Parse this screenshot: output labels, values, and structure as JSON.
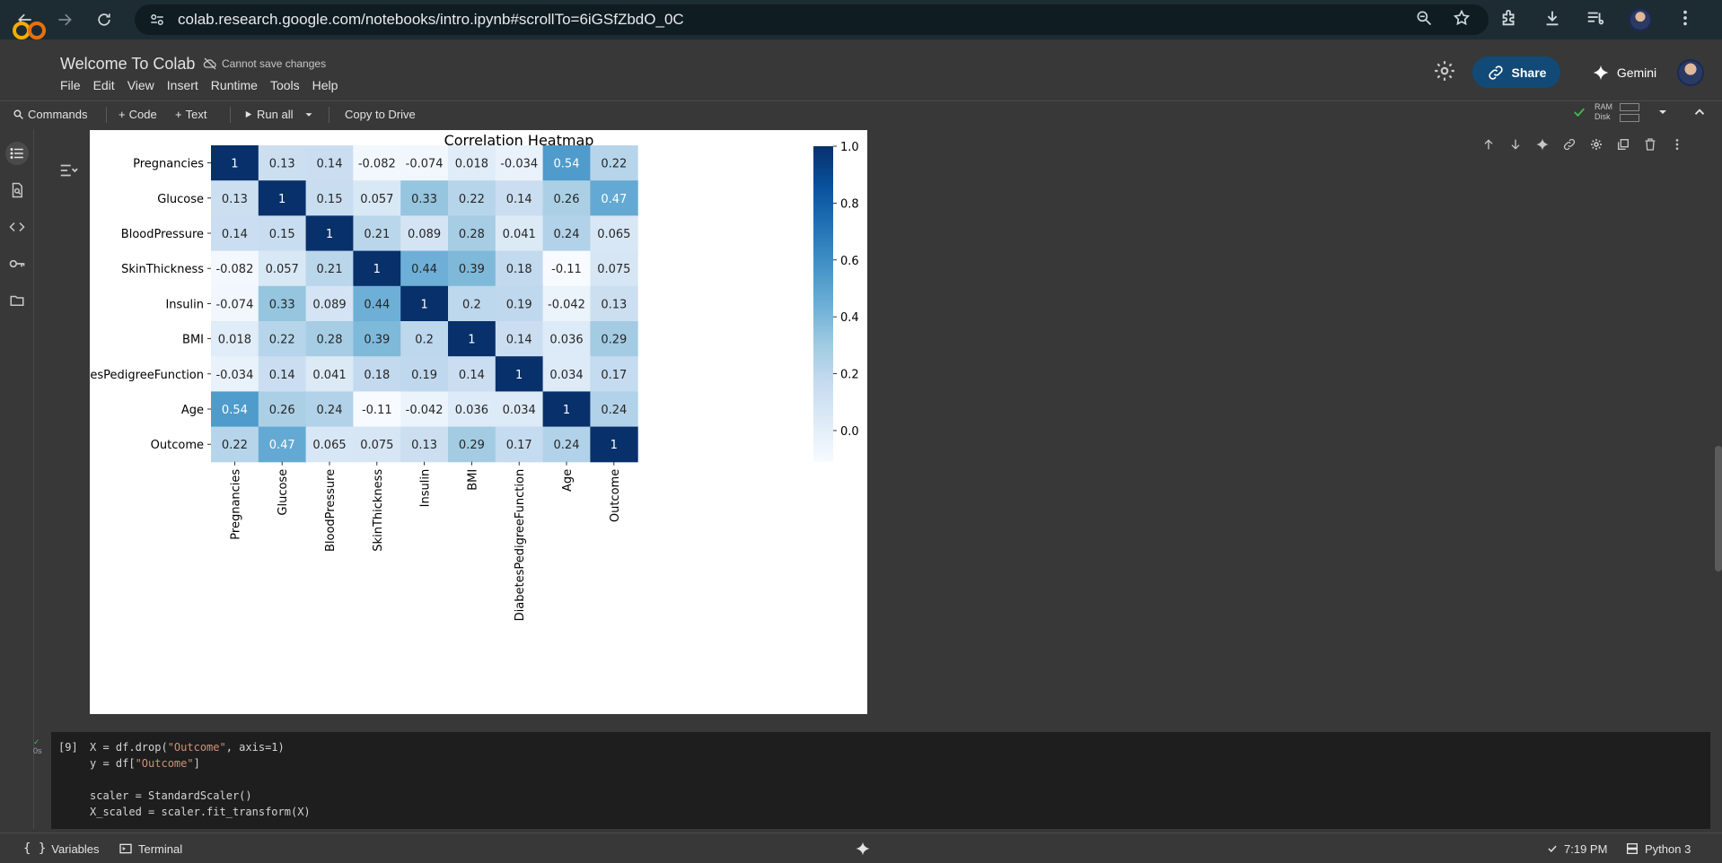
{
  "browser": {
    "url": "colab.research.google.com/notebooks/intro.ipynb#scrollTo=6iGSfZbdO_0C"
  },
  "header": {
    "title": "Welcome To Colab",
    "save_status": "Cannot save changes",
    "menu": [
      "File",
      "Edit",
      "View",
      "Insert",
      "Runtime",
      "Tools",
      "Help"
    ],
    "share_label": "Share",
    "gemini_label": "Gemini"
  },
  "toolbar": {
    "commands_label": "Commands",
    "code_label": "Code",
    "text_label": "Text",
    "run_all_label": "Run all",
    "copy_label": "Copy to Drive",
    "ram_label": "RAM",
    "disk_label": "Disk"
  },
  "chart_data": {
    "type": "heatmap",
    "title": "Correlation Heatmap",
    "labels": [
      "Pregnancies",
      "Glucose",
      "BloodPressure",
      "SkinThickness",
      "Insulin",
      "BMI",
      "DiabetesPedigreeFunction",
      "Age",
      "Outcome"
    ],
    "values": [
      [
        1,
        0.13,
        0.14,
        -0.082,
        -0.074,
        0.018,
        -0.034,
        0.54,
        0.22
      ],
      [
        0.13,
        1,
        0.15,
        0.057,
        0.33,
        0.22,
        0.14,
        0.26,
        0.47
      ],
      [
        0.14,
        0.15,
        1,
        0.21,
        0.089,
        0.28,
        0.041,
        0.24,
        0.065
      ],
      [
        -0.082,
        0.057,
        0.21,
        1,
        0.44,
        0.39,
        0.18,
        -0.11,
        0.075
      ],
      [
        -0.074,
        0.33,
        0.089,
        0.44,
        1,
        0.2,
        0.19,
        -0.042,
        0.13
      ],
      [
        0.018,
        0.22,
        0.28,
        0.39,
        0.2,
        1,
        0.14,
        0.036,
        0.29
      ],
      [
        -0.034,
        0.14,
        0.041,
        0.18,
        0.19,
        0.14,
        1,
        0.034,
        0.17
      ],
      [
        0.54,
        0.26,
        0.24,
        -0.11,
        -0.042,
        0.036,
        0.034,
        1,
        0.24
      ],
      [
        0.22,
        0.47,
        0.065,
        0.075,
        0.13,
        0.29,
        0.17,
        0.24,
        1
      ]
    ],
    "colormap": "Blues",
    "vmin": -0.11,
    "vmax": 1.0,
    "colorbar_ticks": [
      "1.0",
      "0.8",
      "0.6",
      "0.4",
      "0.2",
      "0.0"
    ],
    "colorbar_tick_values": [
      1.0,
      0.8,
      0.6,
      0.4,
      0.2,
      0.0
    ]
  },
  "code_cell": {
    "exec_count": "[9]",
    "exec_time": "0s",
    "lines": [
      [
        "X = df.drop(",
        "\"Outcome\"",
        ", axis=1)"
      ],
      [
        "y = df[",
        "\"Outcome\"",
        "]"
      ],
      [
        "",
        "",
        ""
      ],
      [
        "scaler = StandardScaler()",
        "",
        ""
      ],
      [
        "X_scaled = scaler.fit_transform(X)",
        "",
        ""
      ]
    ]
  },
  "statusbar": {
    "variables_label": "Variables",
    "terminal_label": "Terminal",
    "time": "7:19 PM",
    "runtime": "Python 3"
  }
}
